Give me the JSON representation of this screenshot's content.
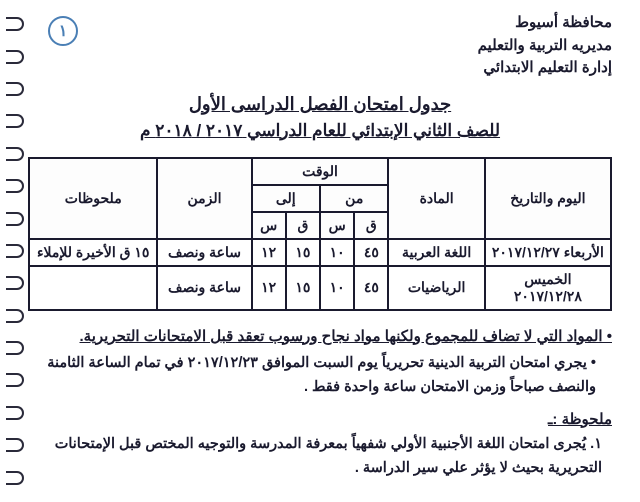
{
  "page_number": "١",
  "header": {
    "line1": "محافظة أسيوط",
    "line2": "مديريه التربية والتعليم",
    "line3": "إدارة التعليم الابتدائي"
  },
  "title1": "جدول امتحان الفصل الدراسى الأول",
  "title2": "للصف الثاني الإبتدائي للعام الدراسي ٢٠١٧ / ٢٠١٨ م",
  "table": {
    "head": {
      "date": "اليوم والتاريخ",
      "subject": "المادة",
      "time": "الوقت",
      "from": "من",
      "to": "إلى",
      "m": "ق",
      "h": "س",
      "duration": "الزمن",
      "notes": "ملحوظات"
    },
    "rows": [
      {
        "date": "الأربعاء ٢٠١٧/١٢/٢٧",
        "subject": "اللغة العربية",
        "from_m": "٤٥",
        "from_h": "١٠",
        "to_m": "١٥",
        "to_h": "١٢",
        "duration": "ساعة ونصف",
        "note": "١٥ ق الأخيرة للإملاء"
      },
      {
        "date": "الخميس ٢٠١٧/١٢/٢٨",
        "subject": "الرياضيات",
        "from_m": "٤٥",
        "from_h": "١٠",
        "to_m": "١٥",
        "to_h": "١٢",
        "duration": "ساعة ونصف",
        "note": ""
      }
    ]
  },
  "notes": {
    "main_heading_lead": "• المواد التي لا تضاف للمجموع ولكنها مواد نجاح ورسوب ",
    "main_heading_tail": "تعقد قبل الامتحانات التحريرية.",
    "bullet1": "• يجري امتحان التربية الدينية تحريرياً يوم السبت الموافق ٢٠١٧/١٢/٢٣ في تمام الساعة الثامنة والنصف صباحاً وزمن الامتحان ساعة واحدة فقط .",
    "sub_heading": "ملحوظة :ـ",
    "num1": "١. يُجرى امتحان اللغة الأجنبية الأولي شفهياً بمعرفة المدرسة والتوجيه المختص قبل الإمتحانات التحريرية بحيث لا يؤثر علي سير الدراسة ."
  },
  "style": {
    "page_bg": "#ffffff",
    "text_color": "#1a1a2e",
    "circle_color": "#4a7fb5",
    "border_color": "#1a1a2e"
  }
}
